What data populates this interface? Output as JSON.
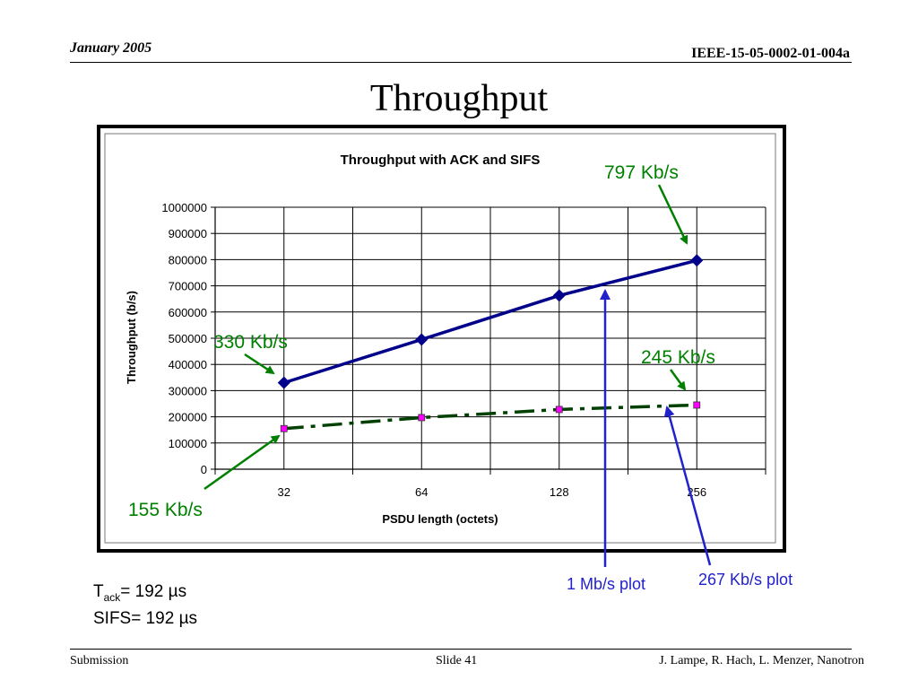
{
  "header": {
    "date": "January 2005",
    "doc_id": "IEEE-15-05-0002-01-004a"
  },
  "slide_title": "Throughput",
  "chart_data": {
    "type": "line",
    "title": "Throughput with ACK and SIFS",
    "xlabel": "PSDU length (octets)",
    "ylabel": "Throughput (b/s)",
    "categories": [
      "32",
      "64",
      "128",
      "256"
    ],
    "ylim": [
      0,
      1000000
    ],
    "yticks": [
      "0",
      "100000",
      "200000",
      "300000",
      "400000",
      "500000",
      "600000",
      "700000",
      "800000",
      "900000",
      "1000000"
    ],
    "grid": true,
    "series": [
      {
        "values": [
          330000,
          495000,
          663000,
          797000
        ],
        "color": "#00008b",
        "marker": "diamond",
        "line": "solid"
      },
      {
        "values": [
          155000,
          197000,
          228000,
          245000
        ],
        "color": "#004000",
        "marker": "square",
        "marker_color": "#ff00ff",
        "line": "dash-dot"
      }
    ]
  },
  "annotations": {
    "a797": "797 Kb/s",
    "a330": "330 Kb/s",
    "a245": "245 Kb/s",
    "a155": "155 Kb/s",
    "plot1": "1 Mb/s plot",
    "plot2": "267 Kb/s plot",
    "green": "#008000",
    "blue": "#2222cc"
  },
  "notes": {
    "tack_prefix": "T",
    "tack_sub": "ack",
    "tack_value": "= 192 µs",
    "sifs": "SIFS= 192 µs"
  },
  "footer": {
    "left": "Submission",
    "center": "Slide 41",
    "right": "J. Lampe, R. Hach, L. Menzer, Nanotron"
  }
}
